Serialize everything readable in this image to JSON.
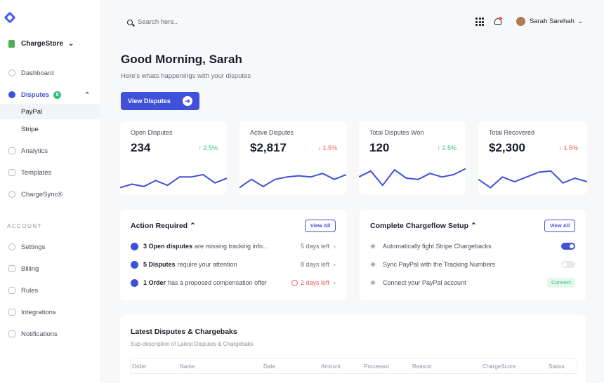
{
  "sidebar": {
    "store": "ChargeStore",
    "items": [
      {
        "label": "Dashboard"
      },
      {
        "label": "Disputes",
        "badge": "8"
      },
      {
        "label": "PayPal"
      },
      {
        "label": "Stripe"
      },
      {
        "label": "Analytics"
      },
      {
        "label": "Templates"
      },
      {
        "label": "ChargeSync®"
      }
    ],
    "account_label": "ACCOUNT",
    "account_items": [
      {
        "label": "Settings"
      },
      {
        "label": "Billing"
      },
      {
        "label": "Rules"
      },
      {
        "label": "Integrations"
      },
      {
        "label": "Notifications"
      }
    ]
  },
  "header": {
    "search_placeholder": "Search here..",
    "user_name": "Sarah Sarehah"
  },
  "main": {
    "greeting": "Good Morning, Sarah",
    "subtitle": "Here's whats happenings with your disputes",
    "view_button": "View Disputes",
    "stats": [
      {
        "label": "Open Disputes",
        "value": "234",
        "change": "2.5%",
        "trend": "up",
        "spark": [
          2,
          5,
          3,
          8,
          4,
          11,
          11,
          13,
          6,
          10
        ]
      },
      {
        "label": "Active Disputes",
        "value": "$2,817",
        "change": "1.5%",
        "trend": "down",
        "spark": [
          2,
          9,
          3,
          9,
          11,
          12,
          11,
          14,
          9,
          13
        ]
      },
      {
        "label": "Total Disputes Won",
        "value": "120",
        "change": "2.5%",
        "trend": "up",
        "spark": [
          11,
          16,
          4,
          17,
          10,
          9,
          14,
          11,
          13,
          18
        ]
      },
      {
        "label": "Total Recovered",
        "value": "$2,300",
        "change": "1.5%",
        "trend": "down",
        "spark": [
          9,
          2,
          11,
          7,
          11,
          15,
          16,
          6,
          10,
          7
        ]
      }
    ],
    "actions": {
      "title": "Action Required",
      "view_all": "View All",
      "rows": [
        {
          "bold": "3 Open disputes",
          "text": "are missing tracking info...",
          "due": "5 days left"
        },
        {
          "bold": "5 Disputes",
          "text": "require your attention",
          "due": "8 days left"
        },
        {
          "bold": "1 Order",
          "text": "has a proposed compensation offer",
          "due": "2 days left"
        }
      ]
    },
    "setup": {
      "title": "Complete Chargeflow Setup",
      "view_all": "View All",
      "rows": [
        {
          "label": "Automatically fight Stripe Chargebacks"
        },
        {
          "label": "Sync PayPal with the Tracking Numbers"
        },
        {
          "label": "Connect your PayPal account",
          "action": "Connect"
        }
      ]
    },
    "table": {
      "title": "Latest Disputes & Chargebaks",
      "subtitle": "Sub-description of Latest Disputes & Chargebaks",
      "columns": [
        "Order",
        "Name",
        "Date",
        "Amount",
        "Processor",
        "Reason",
        "ChargeScore",
        "Status"
      ]
    }
  },
  "colors": {
    "accent": "#3f51d9",
    "positive": "#2ec27e",
    "negative": "#ef5b5b"
  }
}
